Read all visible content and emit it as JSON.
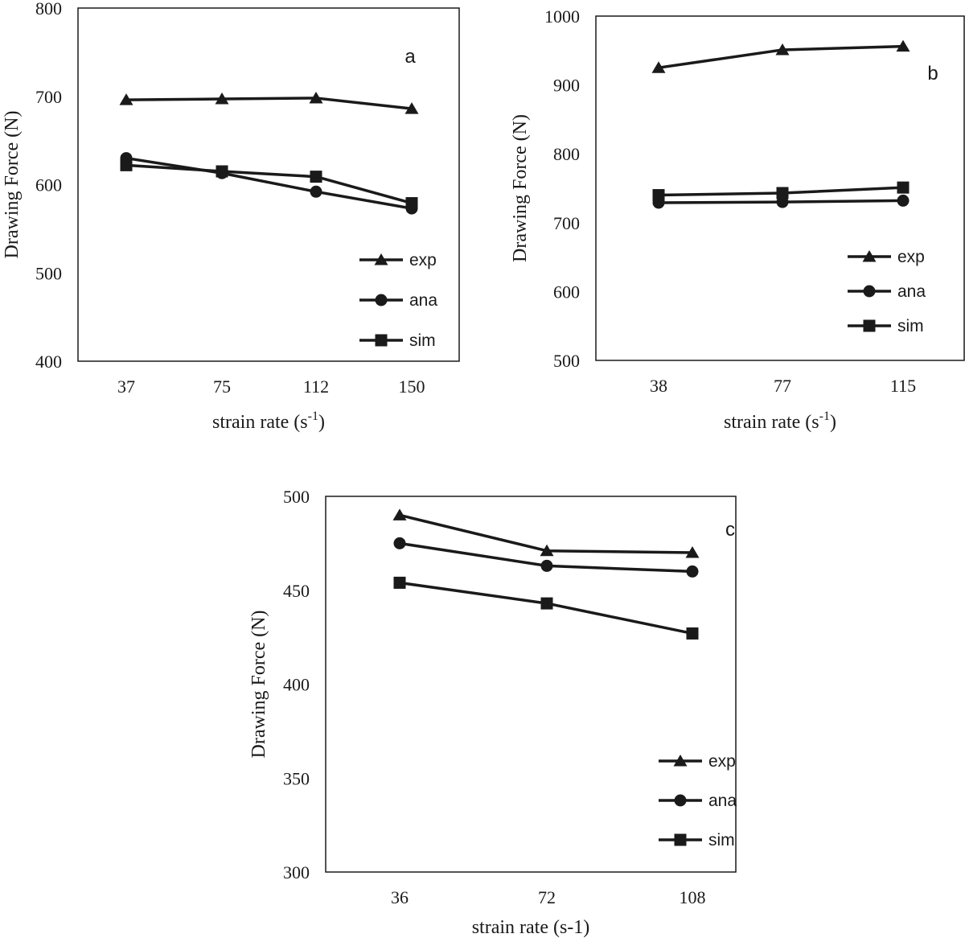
{
  "chart_data": [
    {
      "type": "line",
      "panel_label": "a",
      "categories": [
        "37",
        "75",
        "112",
        "150"
      ],
      "ylim": [
        400,
        800
      ],
      "yticks": [
        "400",
        "500",
        "600",
        "700",
        "800"
      ],
      "ylabel": "Drawing Force (N)",
      "xlabel": "strain rate (s",
      "xlabel_sup": "-1",
      "xlabel_tail": ")",
      "legend_position": "bottom-right",
      "series": [
        {
          "name": "exp",
          "marker": "triangle",
          "values": [
            696,
            697,
            698,
            686
          ]
        },
        {
          "name": "ana",
          "marker": "circle",
          "values": [
            630,
            613,
            592,
            573
          ]
        },
        {
          "name": "sim",
          "marker": "square",
          "values": [
            622,
            615,
            609,
            579
          ]
        }
      ]
    },
    {
      "type": "line",
      "panel_label": "b",
      "categories": [
        "38",
        "77",
        "115"
      ],
      "ylim": [
        500,
        1000
      ],
      "yticks": [
        "500",
        "600",
        "700",
        "800",
        "900",
        "1000"
      ],
      "ylabel": "Drawing Force (N)",
      "xlabel": "strain rate (s",
      "xlabel_sup": "-1",
      "xlabel_tail": ")",
      "legend_position": "bottom-right",
      "series": [
        {
          "name": "exp",
          "marker": "triangle",
          "values": [
            925,
            951,
            956
          ]
        },
        {
          "name": "ana",
          "marker": "circle",
          "values": [
            729,
            730,
            732
          ]
        },
        {
          "name": "sim",
          "marker": "square",
          "values": [
            740,
            743,
            751
          ]
        }
      ]
    },
    {
      "type": "line",
      "panel_label": "c",
      "categories": [
        "36",
        "72",
        "108"
      ],
      "ylim": [
        300,
        500
      ],
      "yticks": [
        "300",
        "350",
        "400",
        "450",
        "500"
      ],
      "ylabel": "Drawing Force (N)",
      "xlabel": "strain rate (s-1)",
      "xlabel_sup": "",
      "xlabel_tail": "",
      "legend_position": "bottom-right",
      "series": [
        {
          "name": "exp",
          "marker": "triangle",
          "values": [
            490,
            471,
            470
          ]
        },
        {
          "name": "ana",
          "marker": "circle",
          "values": [
            475,
            463,
            460
          ]
        },
        {
          "name": "sim",
          "marker": "square",
          "values": [
            454,
            443,
            427
          ]
        }
      ]
    }
  ]
}
